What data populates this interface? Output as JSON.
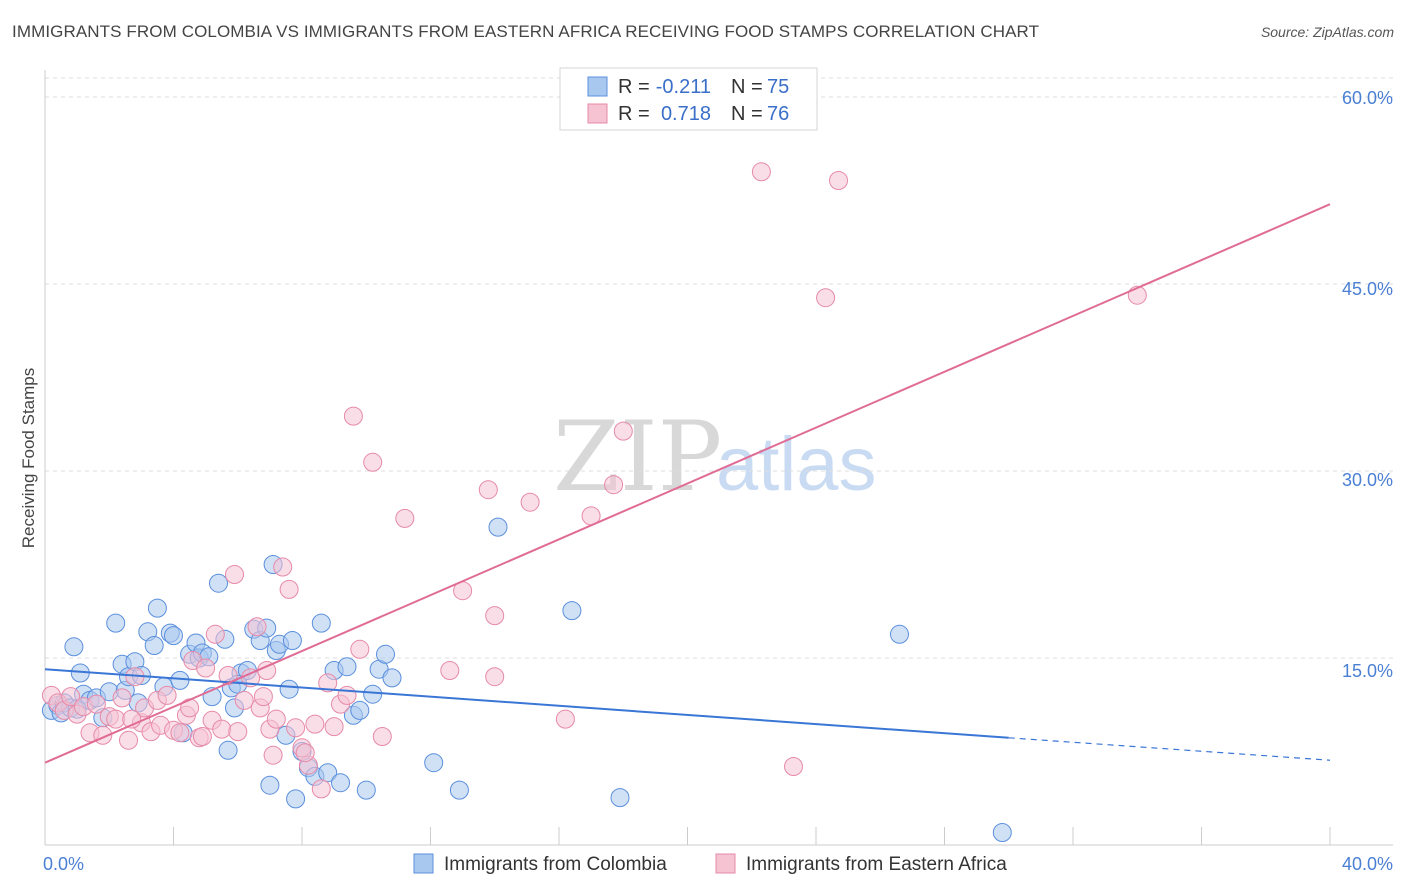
{
  "title": "IMMIGRANTS FROM COLOMBIA VS IMMIGRANTS FROM EASTERN AFRICA RECEIVING FOOD STAMPS CORRELATION CHART",
  "source": "Source: ZipAtlas.com",
  "colors": {
    "colombia_fill": "#a9c8ef",
    "colombia_stroke": "#5b8fdd",
    "colombia_line": "#3a76d6",
    "eastafrica_fill": "#f6c3d3",
    "eastafrica_stroke": "#e68aa8",
    "eastafrica_line": "#e06c96",
    "grid": "#dddddd",
    "axis_text": "#4a7fd4"
  },
  "stats_box": {
    "rows": [
      {
        "r_label": "R =",
        "r_value": "-0.211",
        "n_label": "N =",
        "n_value": "75"
      },
      {
        "r_label": "R =",
        "r_value": "0.718",
        "n_label": "N =",
        "n_value": "76"
      }
    ]
  },
  "watermark": {
    "zip": "ZIP",
    "atlas": "atlas"
  },
  "chart_data": {
    "type": "scatter",
    "title": "IMMIGRANTS FROM COLOMBIA VS IMMIGRANTS FROM EASTERN AFRICA RECEIVING FOOD STAMPS CORRELATION CHART",
    "xlabel": "",
    "ylabel": "Receiving Food Stamps",
    "xlim": [
      0,
      40
    ],
    "ylim": [
      0,
      60
    ],
    "x_tick_labels": [
      "0.0%",
      "40.0%"
    ],
    "y_ticks": [
      15,
      30,
      45,
      60
    ],
    "y_tick_labels": [
      "15.0%",
      "30.0%",
      "45.0%",
      "60.0%"
    ],
    "grid": true,
    "legend": [
      "Immigrants from Colombia",
      "Immigrants from Eastern Africa"
    ],
    "series": [
      {
        "name": "Immigrants from Colombia",
        "r": -0.211,
        "n": 75,
        "trend": {
          "x0": 0,
          "y0": 14.1,
          "x1": 30,
          "y1": 8.6,
          "dash_to_x": 40,
          "dash_to_y": 6.8
        },
        "points": [
          [
            0.2,
            10.8
          ],
          [
            0.4,
            11.2
          ],
          [
            0.5,
            10.6
          ],
          [
            0.6,
            11.4
          ],
          [
            0.8,
            11.0
          ],
          [
            0.9,
            15.9
          ],
          [
            1.1,
            13.8
          ],
          [
            1.2,
            12.1
          ],
          [
            1.4,
            11.6
          ],
          [
            1.6,
            11.8
          ],
          [
            1.8,
            10.2
          ],
          [
            2.0,
            12.3
          ],
          [
            2.2,
            17.8
          ],
          [
            2.4,
            14.5
          ],
          [
            2.5,
            12.4
          ],
          [
            2.6,
            13.5
          ],
          [
            2.8,
            14.7
          ],
          [
            3.0,
            13.6
          ],
          [
            3.2,
            17.1
          ],
          [
            3.4,
            16.0
          ],
          [
            3.5,
            19.0
          ],
          [
            3.7,
            12.7
          ],
          [
            3.9,
            17.0
          ],
          [
            4.0,
            16.8
          ],
          [
            4.2,
            13.2
          ],
          [
            4.3,
            9.0
          ],
          [
            4.5,
            15.3
          ],
          [
            4.7,
            16.2
          ],
          [
            4.8,
            15.0
          ],
          [
            4.9,
            15.4
          ],
          [
            5.1,
            15.1
          ],
          [
            5.2,
            11.9
          ],
          [
            5.4,
            21.0
          ],
          [
            5.6,
            16.5
          ],
          [
            5.7,
            7.6
          ],
          [
            5.8,
            12.6
          ],
          [
            5.9,
            11.0
          ],
          [
            6.1,
            13.8
          ],
          [
            6.3,
            14.0
          ],
          [
            6.5,
            17.3
          ],
          [
            6.7,
            16.4
          ],
          [
            6.9,
            17.4
          ],
          [
            7.0,
            4.8
          ],
          [
            7.1,
            22.5
          ],
          [
            7.2,
            15.6
          ],
          [
            7.3,
            16.1
          ],
          [
            7.5,
            8.8
          ],
          [
            7.6,
            12.5
          ],
          [
            7.7,
            16.4
          ],
          [
            7.8,
            3.7
          ],
          [
            8.0,
            7.5
          ],
          [
            8.2,
            6.2
          ],
          [
            8.4,
            5.5
          ],
          [
            8.6,
            17.8
          ],
          [
            8.8,
            5.8
          ],
          [
            9.0,
            14.0
          ],
          [
            9.2,
            5.0
          ],
          [
            9.4,
            14.3
          ],
          [
            9.6,
            10.4
          ],
          [
            9.8,
            10.8
          ],
          [
            10.0,
            4.4
          ],
          [
            10.2,
            12.1
          ],
          [
            10.4,
            14.1
          ],
          [
            10.6,
            15.3
          ],
          [
            10.8,
            13.4
          ],
          [
            12.1,
            6.6
          ],
          [
            12.9,
            4.4
          ],
          [
            14.1,
            25.5
          ],
          [
            16.4,
            18.8
          ],
          [
            17.9,
            3.8
          ],
          [
            26.6,
            16.9
          ],
          [
            29.8,
            1.0
          ],
          [
            1.0,
            10.9
          ],
          [
            2.9,
            11.4
          ],
          [
            6.0,
            12.9
          ]
        ]
      },
      {
        "name": "Immigrants from Eastern Africa",
        "r": 0.718,
        "n": 76,
        "trend": {
          "x0": 0,
          "y0": 6.6,
          "x1": 40,
          "y1": 51.4
        },
        "points": [
          [
            0.2,
            12.0
          ],
          [
            0.4,
            11.4
          ],
          [
            0.6,
            10.8
          ],
          [
            0.8,
            11.9
          ],
          [
            1.0,
            10.5
          ],
          [
            1.2,
            11.1
          ],
          [
            1.4,
            9.0
          ],
          [
            1.6,
            11.3
          ],
          [
            1.8,
            8.8
          ],
          [
            2.0,
            10.3
          ],
          [
            2.2,
            10.1
          ],
          [
            2.4,
            11.8
          ],
          [
            2.6,
            8.4
          ],
          [
            2.8,
            13.5
          ],
          [
            3.0,
            9.8
          ],
          [
            3.1,
            11.0
          ],
          [
            3.3,
            9.1
          ],
          [
            3.5,
            11.6
          ],
          [
            3.6,
            9.6
          ],
          [
            3.8,
            12.0
          ],
          [
            4.0,
            9.2
          ],
          [
            4.2,
            9.0
          ],
          [
            4.4,
            10.4
          ],
          [
            4.5,
            11.0
          ],
          [
            4.6,
            14.8
          ],
          [
            4.8,
            8.6
          ],
          [
            5.0,
            14.2
          ],
          [
            5.2,
            10.0
          ],
          [
            5.3,
            16.9
          ],
          [
            5.5,
            9.3
          ],
          [
            5.7,
            13.6
          ],
          [
            5.9,
            21.7
          ],
          [
            6.0,
            9.1
          ],
          [
            6.2,
            11.6
          ],
          [
            6.4,
            13.4
          ],
          [
            6.6,
            17.5
          ],
          [
            6.7,
            11.0
          ],
          [
            6.9,
            14.0
          ],
          [
            7.0,
            9.3
          ],
          [
            7.2,
            10.1
          ],
          [
            7.4,
            22.3
          ],
          [
            7.6,
            20.5
          ],
          [
            7.8,
            9.4
          ],
          [
            8.0,
            7.8
          ],
          [
            8.2,
            6.4
          ],
          [
            8.4,
            9.7
          ],
          [
            8.6,
            4.5
          ],
          [
            8.8,
            13.0
          ],
          [
            9.0,
            9.5
          ],
          [
            9.2,
            11.3
          ],
          [
            9.4,
            12.0
          ],
          [
            9.6,
            34.4
          ],
          [
            9.8,
            15.7
          ],
          [
            10.2,
            30.7
          ],
          [
            10.5,
            8.7
          ],
          [
            11.2,
            26.2
          ],
          [
            12.6,
            14.0
          ],
          [
            13.0,
            20.4
          ],
          [
            13.8,
            28.5
          ],
          [
            14.0,
            18.4
          ],
          [
            14.0,
            13.5
          ],
          [
            15.1,
            27.5
          ],
          [
            16.2,
            10.1
          ],
          [
            17.0,
            26.4
          ],
          [
            17.7,
            28.9
          ],
          [
            18.0,
            33.2
          ],
          [
            22.3,
            54.0
          ],
          [
            23.3,
            6.3
          ],
          [
            24.3,
            43.9
          ],
          [
            24.7,
            53.3
          ],
          [
            34.0,
            44.1
          ],
          [
            7.1,
            7.2
          ],
          [
            2.7,
            10.1
          ],
          [
            4.9,
            8.7
          ],
          [
            6.8,
            11.9
          ],
          [
            8.1,
            7.4
          ]
        ]
      }
    ]
  },
  "legend": {
    "items": [
      {
        "label": "Immigrants from Colombia"
      },
      {
        "label": "Immigrants from Eastern Africa"
      }
    ]
  }
}
